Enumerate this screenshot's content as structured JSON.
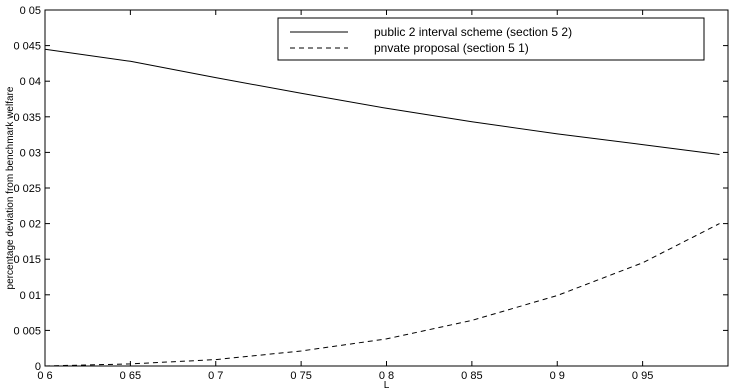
{
  "chart_data": {
    "type": "line",
    "title": "",
    "xlabel": "L",
    "ylabel": "percentage deviation from benchmark welfare",
    "xlim": [
      0.6,
      1.0
    ],
    "ylim": [
      0,
      0.05
    ],
    "grid": false,
    "legend_position": "top-right",
    "x_ticks": [
      0.6,
      0.65,
      0.7,
      0.75,
      0.8,
      0.85,
      0.9,
      0.95
    ],
    "x_tick_labels": [
      "0 6",
      "0 65",
      "0 7",
      "0 75",
      "0 8",
      "0 85",
      "0 9",
      "0 95"
    ],
    "y_ticks": [
      0,
      0.005,
      0.01,
      0.015,
      0.02,
      0.025,
      0.03,
      0.035,
      0.04,
      0.045,
      0.05
    ],
    "y_tick_labels": [
      "0",
      "0 005",
      "0 01",
      "0 015",
      "0 02",
      "0 025",
      "0 03",
      "0 035",
      "0 04",
      "0 045",
      "0 05"
    ],
    "series": [
      {
        "name": "public 2 interval scheme (section 5 2)",
        "style": "solid",
        "color": "#000000",
        "x": [
          0.6,
          0.65,
          0.7,
          0.75,
          0.8,
          0.85,
          0.9,
          0.95,
          0.995
        ],
        "y": [
          0.0445,
          0.0428,
          0.0405,
          0.0383,
          0.0362,
          0.0343,
          0.0326,
          0.0311,
          0.0297
        ]
      },
      {
        "name": "pnvate proposal (section 5 1)",
        "style": "dashed",
        "color": "#000000",
        "x": [
          0.6,
          0.65,
          0.7,
          0.75,
          0.8,
          0.85,
          0.9,
          0.95,
          0.995
        ],
        "y": [
          0.0,
          0.0003,
          0.0009,
          0.0021,
          0.0038,
          0.0064,
          0.0099,
          0.0145,
          0.02
        ]
      }
    ]
  }
}
